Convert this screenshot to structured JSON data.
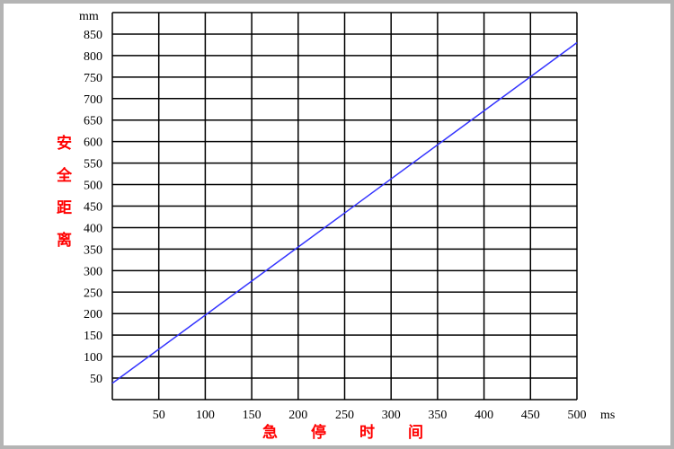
{
  "chart_data": {
    "type": "line",
    "xlabel": "急停时间",
    "ylabel": "安全距离",
    "xunit": "ms",
    "yunit": "mm",
    "xlim": [
      0,
      500
    ],
    "ylim": [
      0,
      900
    ],
    "xticks": [
      50,
      100,
      150,
      200,
      250,
      300,
      350,
      400,
      450,
      500
    ],
    "yticks": [
      50,
      100,
      150,
      200,
      250,
      300,
      350,
      400,
      450,
      500,
      550,
      600,
      650,
      700,
      750,
      800,
      850
    ],
    "grid": true,
    "x_grid_step": 50,
    "y_grid_step": 50,
    "series": [
      {
        "color": "#3333ff",
        "points": [
          [
            0,
            38
          ],
          [
            500,
            830
          ]
        ]
      }
    ],
    "colors": {
      "grid": "#000000",
      "axis_title": "#ff0000",
      "frame": "#b4b4b4"
    }
  }
}
